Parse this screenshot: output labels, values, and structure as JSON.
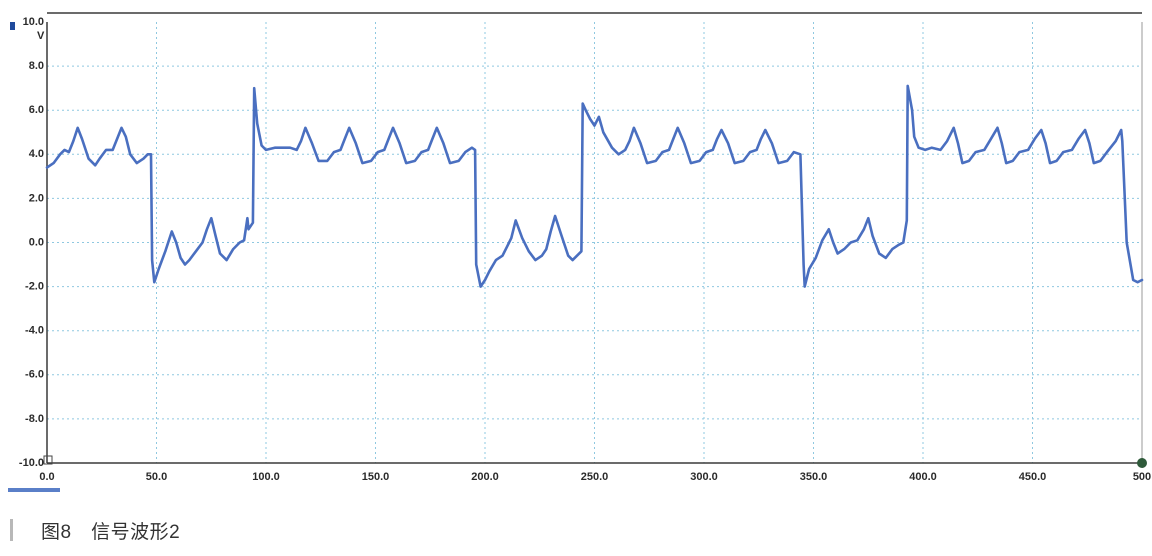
{
  "chart_data": {
    "type": "line",
    "title": "",
    "ylabel": "V",
    "xlabel": "",
    "xlim": [
      0,
      500
    ],
    "ylim": [
      -10,
      10
    ],
    "x_ticks": [
      "0.0",
      "50.0",
      "100.0",
      "150.0",
      "200.0",
      "250.0",
      "300.0",
      "350.0",
      "400.0",
      "450.0",
      "500"
    ],
    "y_ticks": [
      "10.0",
      "8.0",
      "6.0",
      "4.0",
      "2.0",
      "0.0",
      "-2.0",
      "-4.0",
      "-6.0",
      "-8.0",
      "-10.0"
    ],
    "grid": true,
    "series": [
      {
        "color": "#4a6fc0",
        "x": [
          0,
          3,
          6,
          8,
          10,
          12,
          14,
          16,
          19,
          22,
          24,
          27,
          30,
          32,
          34,
          36,
          38,
          41,
          44,
          46,
          47.5,
          48,
          49,
          51,
          54,
          57,
          59,
          61,
          63,
          65,
          68,
          71,
          73,
          75,
          77,
          79,
          82,
          85,
          88,
          90,
          91.5,
          92,
          94,
          94.6,
          96,
          98,
          100,
          104,
          108,
          111,
          114,
          116,
          118,
          121,
          124,
          128,
          131,
          134,
          136,
          138,
          141,
          144,
          148,
          151,
          154,
          156,
          158,
          161,
          164,
          168,
          171,
          174,
          176,
          178,
          181,
          184,
          188,
          191,
          194,
          195.5,
          196,
          198,
          200,
          202,
          205,
          208,
          210,
          212,
          214,
          217,
          220,
          223,
          226,
          228,
          230,
          232,
          235,
          238,
          240,
          242,
          244,
          244.6,
          246,
          248,
          250,
          252,
          254,
          258,
          261,
          264,
          266,
          268,
          271,
          274,
          278,
          281,
          284,
          286,
          288,
          291,
          294,
          298,
          301,
          304,
          306,
          308,
          311,
          314,
          318,
          321,
          324,
          326,
          328,
          331,
          334,
          338,
          341,
          344,
          345.5,
          346,
          348,
          351,
          354,
          357,
          359,
          361,
          364,
          367,
          370,
          373,
          375,
          377,
          380,
          383,
          386,
          389,
          391,
          392.6,
          393,
          395,
          396,
          398,
          401,
          404,
          408,
          411,
          414,
          416,
          418,
          421,
          424,
          428,
          431,
          434,
          436,
          438,
          441,
          444,
          448,
          451,
          454,
          456,
          458,
          461,
          464,
          468,
          471,
          474,
          476,
          478,
          481,
          484,
          488,
          490.5,
          491,
          493,
          496,
          498,
          500
        ],
        "y": [
          3.4,
          3.6,
          4.0,
          4.2,
          4.1,
          4.6,
          5.2,
          4.7,
          3.8,
          3.5,
          3.8,
          4.2,
          4.2,
          4.7,
          5.2,
          4.8,
          4.0,
          3.6,
          3.8,
          4.0,
          4.0,
          -0.8,
          -1.8,
          -1.2,
          -0.4,
          0.5,
          0.0,
          -0.7,
          -1.0,
          -0.8,
          -0.4,
          0.0,
          0.6,
          1.1,
          0.3,
          -0.5,
          -0.8,
          -0.3,
          0.0,
          0.1,
          1.1,
          0.6,
          0.9,
          7.0,
          5.4,
          4.4,
          4.2,
          4.3,
          4.3,
          4.3,
          4.2,
          4.6,
          5.2,
          4.5,
          3.7,
          3.7,
          4.1,
          4.2,
          4.7,
          5.2,
          4.5,
          3.6,
          3.7,
          4.1,
          4.2,
          4.7,
          5.2,
          4.5,
          3.6,
          3.7,
          4.1,
          4.2,
          4.7,
          5.2,
          4.5,
          3.6,
          3.7,
          4.1,
          4.3,
          4.2,
          -1.0,
          -2.0,
          -1.7,
          -1.3,
          -0.8,
          -0.6,
          -0.2,
          0.2,
          1.0,
          0.2,
          -0.4,
          -0.8,
          -0.6,
          -0.3,
          0.5,
          1.2,
          0.3,
          -0.6,
          -0.8,
          -0.6,
          -0.4,
          6.3,
          6.0,
          5.6,
          5.3,
          5.7,
          5.0,
          4.3,
          4.0,
          4.2,
          4.6,
          5.2,
          4.5,
          3.6,
          3.7,
          4.1,
          4.2,
          4.7,
          5.2,
          4.5,
          3.6,
          3.7,
          4.1,
          4.2,
          4.7,
          5.1,
          4.5,
          3.6,
          3.7,
          4.1,
          4.2,
          4.7,
          5.1,
          4.5,
          3.6,
          3.7,
          4.1,
          4.0,
          -1.0,
          -2.0,
          -1.2,
          -0.7,
          0.1,
          0.6,
          0.0,
          -0.5,
          -0.3,
          0.0,
          0.1,
          0.6,
          1.1,
          0.3,
          -0.5,
          -0.7,
          -0.3,
          -0.1,
          0.0,
          1.0,
          7.1,
          6.0,
          4.8,
          4.3,
          4.2,
          4.3,
          4.2,
          4.6,
          5.2,
          4.5,
          3.6,
          3.7,
          4.1,
          4.2,
          4.7,
          5.2,
          4.5,
          3.6,
          3.7,
          4.1,
          4.2,
          4.7,
          5.1,
          4.5,
          3.6,
          3.7,
          4.1,
          4.2,
          4.7,
          5.1,
          4.5,
          3.6,
          3.7,
          4.1,
          4.6,
          5.1,
          4.6,
          0.0,
          -1.7,
          -1.8,
          -1.7
        ]
      }
    ]
  },
  "caption": {
    "text": "图8　信号波形2"
  }
}
